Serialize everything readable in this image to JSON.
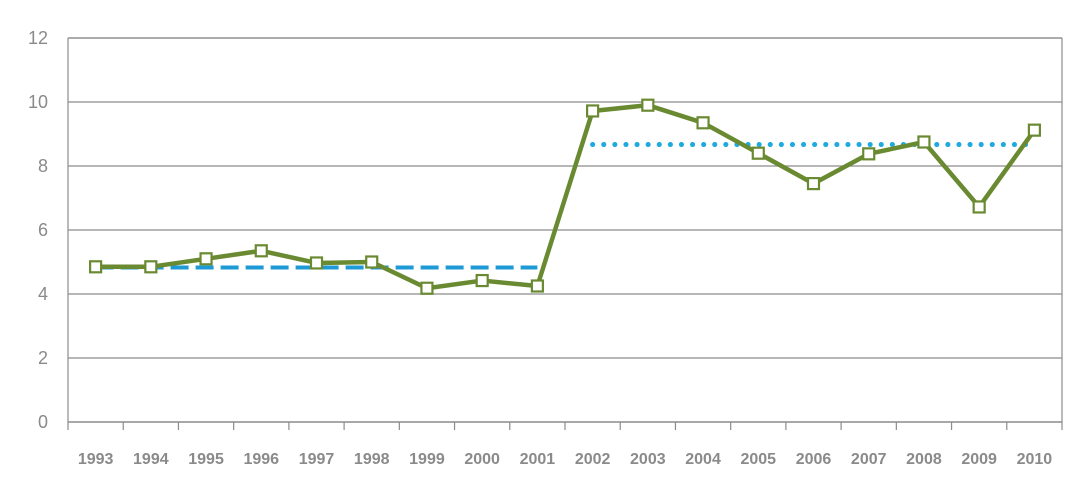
{
  "chart_data": {
    "type": "line",
    "title": "",
    "xlabel": "",
    "ylabel": "",
    "categories": [
      "1993",
      "1994",
      "1995",
      "1996",
      "1997",
      "1998",
      "1999",
      "2000",
      "2001",
      "2002",
      "2003",
      "2004",
      "2005",
      "2006",
      "2007",
      "2008",
      "2009",
      "2010"
    ],
    "ylim": [
      0,
      12
    ],
    "yticks": [
      "0",
      "2",
      "4",
      "6",
      "8",
      "10",
      "12"
    ],
    "grid": true,
    "legend": "none",
    "series": [
      {
        "values": [
          4.85,
          4.85,
          5.1,
          5.35,
          4.97,
          5.0,
          4.18,
          4.42,
          4.25,
          9.72,
          9.9,
          9.35,
          8.4,
          7.45,
          8.38,
          8.75,
          6.72,
          9.12
        ],
        "color": "#6a8a32",
        "marker": "open-square",
        "marker_fill": "#ffffff"
      }
    ],
    "reference_lines": [
      {
        "style": "dashed",
        "color": "#1e9ad6",
        "y": 4.83,
        "from": "1993",
        "to": "2001"
      },
      {
        "style": "dotted",
        "color": "#1eaadf",
        "y": 8.67,
        "from": "2002",
        "to": "2010"
      }
    ]
  }
}
